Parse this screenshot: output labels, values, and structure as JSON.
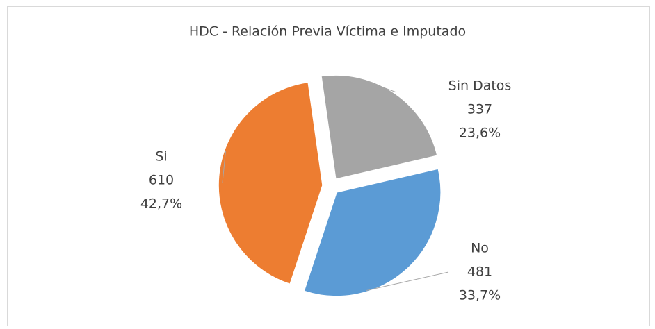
{
  "chart_data": {
    "type": "pie",
    "title": "HDC - Relación Previa Víctima e Imputado",
    "categories": [
      "Sin Datos",
      "No",
      "Si"
    ],
    "values": [
      337,
      481,
      610
    ],
    "percentages": [
      23.6,
      33.7,
      42.7
    ],
    "percentage_labels": [
      "23,6%",
      "33,7%",
      "42,7%"
    ],
    "colors": [
      "#a5a5a5",
      "#5b9bd5",
      "#ed7d31"
    ],
    "exploded": true
  }
}
